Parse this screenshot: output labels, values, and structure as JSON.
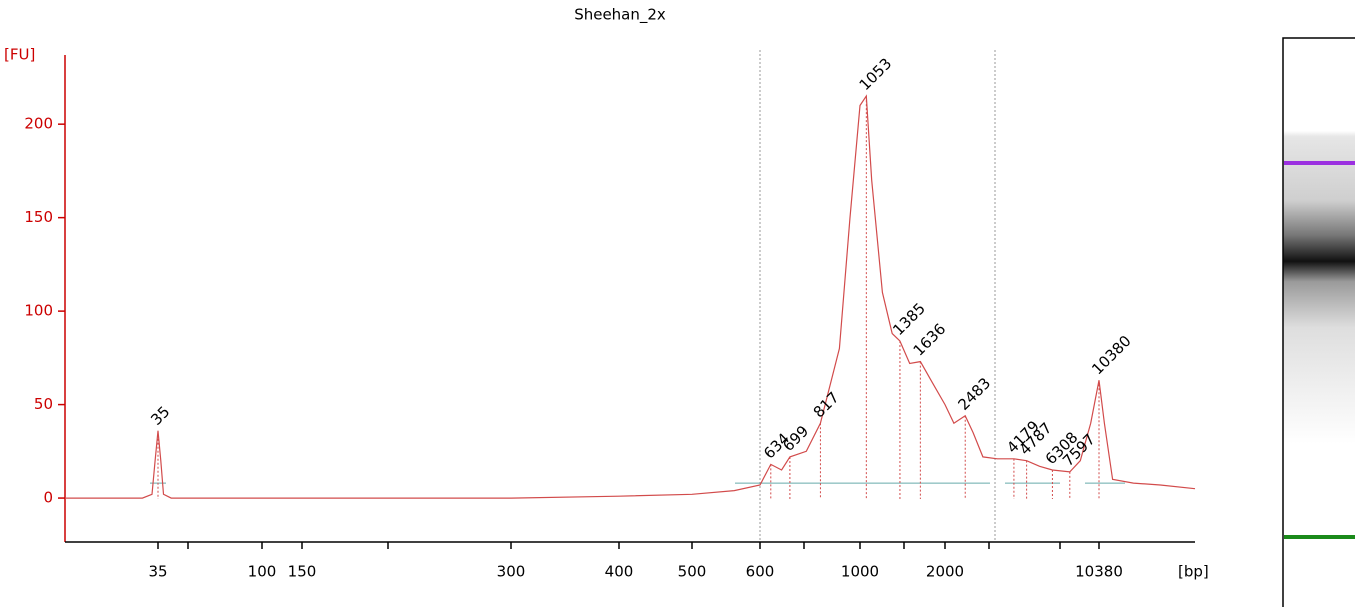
{
  "chart_data": {
    "type": "line",
    "title": "Sheehan_2x",
    "y_label": "[FU]",
    "x_label": "[bp]",
    "log_x": true,
    "xlim": [
      14,
      29000
    ],
    "ylim": [
      -23.5,
      237
    ],
    "xticks": [
      35,
      100,
      150,
      300,
      400,
      500,
      600,
      1000,
      2000,
      10380
    ],
    "yticks": [
      0,
      50,
      100,
      150,
      200
    ],
    "axis_color": "#cc0000",
    "x": [
      14,
      30,
      33,
      34,
      35,
      36,
      37,
      40,
      100,
      200,
      300,
      400,
      500,
      560,
      600,
      634,
      670,
      699,
      760,
      817,
      900,
      950,
      1000,
      1053,
      1100,
      1200,
      1300,
      1385,
      1500,
      1636,
      1800,
      2000,
      2200,
      2483,
      2700,
      3000,
      3500,
      4179,
      4787,
      5500,
      6308,
      7597,
      8500,
      9500,
      10380,
      11000,
      12000,
      15000,
      20000,
      29000
    ],
    "series": [
      {
        "name": "Sheehan_2x",
        "color": "#d24b4b",
        "values": [
          0,
          0,
          2,
          20,
          36,
          20,
          2,
          0,
          0,
          0,
          0,
          1,
          2,
          4,
          7,
          18,
          15,
          22,
          25,
          40,
          80,
          150,
          210,
          215,
          170,
          110,
          88,
          84,
          72,
          73,
          62,
          50,
          40,
          44,
          35,
          22,
          21,
          21,
          20,
          17,
          15,
          14,
          20,
          40,
          63,
          40,
          10,
          8,
          7,
          5
        ]
      }
    ],
    "peaks": {
      "bp": [
        35,
        634,
        699,
        817,
        1053,
        1385,
        1636,
        2483,
        4179,
        4787,
        6308,
        7597,
        10380
      ],
      "fu": [
        36,
        18,
        22,
        40,
        215,
        84,
        73,
        44,
        21,
        20,
        15,
        14,
        63
      ],
      "colors": [
        "#1a8a1a",
        "#000000",
        "#000000",
        "#000000",
        "#000000",
        "#000000",
        "#000000",
        "#000000",
        "#000000",
        "#000000",
        "#000000",
        "#000000",
        "#9b30e0"
      ]
    }
  }
}
